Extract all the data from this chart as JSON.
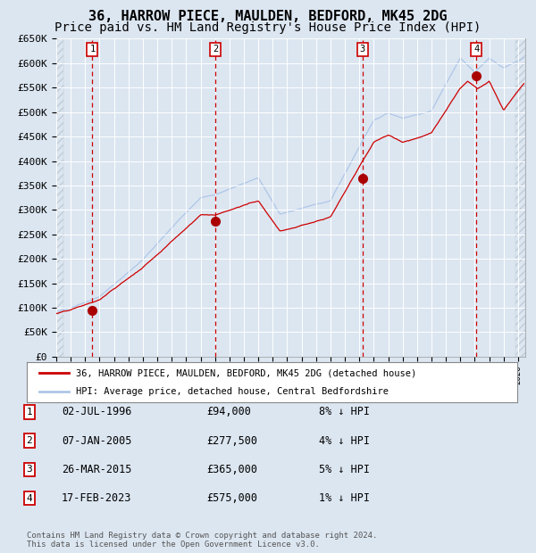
{
  "title": "36, HARROW PIECE, MAULDEN, BEDFORD, MK45 2DG",
  "subtitle": "Price paid vs. HM Land Registry's House Price Index (HPI)",
  "ylim": [
    0,
    650000
  ],
  "yticks": [
    0,
    50000,
    100000,
    150000,
    200000,
    250000,
    300000,
    350000,
    400000,
    450000,
    500000,
    550000,
    600000,
    650000
  ],
  "ytick_labels": [
    "£0",
    "£50K",
    "£100K",
    "£150K",
    "£200K",
    "£250K",
    "£300K",
    "£350K",
    "£400K",
    "£450K",
    "£500K",
    "£550K",
    "£600K",
    "£650K"
  ],
  "xlim_start": 1994.0,
  "xlim_end": 2026.5,
  "background_color": "#dce6f1",
  "plot_bg_color": "#dce6f1",
  "grid_color": "#ffffff",
  "hpi_line_color": "#aec6e8",
  "price_line_color": "#cc0000",
  "sale_marker_color": "#aa0000",
  "dashed_line_color": "#cc0000",
  "sale_points": [
    {
      "date_num": 1996.5,
      "price": 94000,
      "label": "1"
    },
    {
      "date_num": 2005.03,
      "price": 277500,
      "label": "2"
    },
    {
      "date_num": 2015.23,
      "price": 365000,
      "label": "3"
    },
    {
      "date_num": 2023.12,
      "price": 575000,
      "label": "4"
    }
  ],
  "table_rows": [
    {
      "num": "1",
      "date": "02-JUL-1996",
      "price": "£94,000",
      "hpi": "8% ↓ HPI"
    },
    {
      "num": "2",
      "date": "07-JAN-2005",
      "price": "£277,500",
      "hpi": "4% ↓ HPI"
    },
    {
      "num": "3",
      "date": "26-MAR-2015",
      "price": "£365,000",
      "hpi": "5% ↓ HPI"
    },
    {
      "num": "4",
      "date": "17-FEB-2023",
      "price": "£575,000",
      "hpi": "1% ↓ HPI"
    }
  ],
  "legend_line1": "36, HARROW PIECE, MAULDEN, BEDFORD, MK45 2DG (detached house)",
  "legend_line2": "HPI: Average price, detached house, Central Bedfordshire",
  "footer": "Contains HM Land Registry data © Crown copyright and database right 2024.\nThis data is licensed under the Open Government Licence v3.0.",
  "title_fontsize": 11,
  "subtitle_fontsize": 10,
  "tick_fontsize": 8
}
